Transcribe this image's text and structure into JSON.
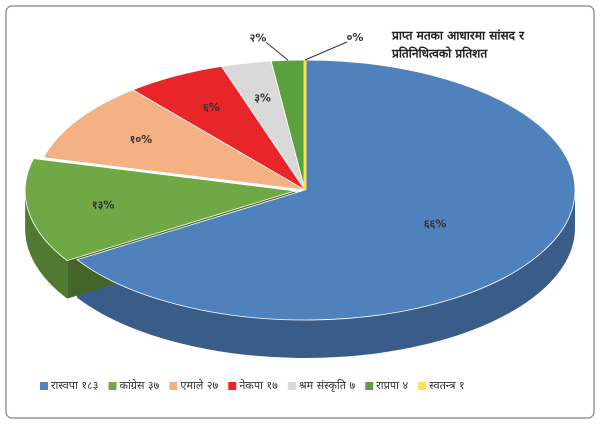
{
  "chart_data": {
    "type": "pie3d",
    "title": [
      "प्राप्त मतका आधारमा सांसद र",
      "प्रतिनिधित्वको प्रतिशत"
    ],
    "categories": [
      "रास्वपा १८३",
      "कांग्रेस ३७",
      "एमाले २७",
      "नेकपा १७",
      "श्रम संस्कृति ७",
      "राप्रपा ४",
      "स्वतन्त्र १"
    ],
    "values": [
      66,
      13,
      10,
      6,
      3,
      2,
      0
    ],
    "value_labels": [
      "६६%",
      "१३%",
      "१०%",
      "६%",
      "३%",
      "२%",
      "०%"
    ],
    "colors": [
      "#4f81bd",
      "#6fa844",
      "#f4b183",
      "#e8262a",
      "#d9d9d9",
      "#5aa03c",
      "#ffe14d"
    ],
    "legend": "bottom"
  }
}
